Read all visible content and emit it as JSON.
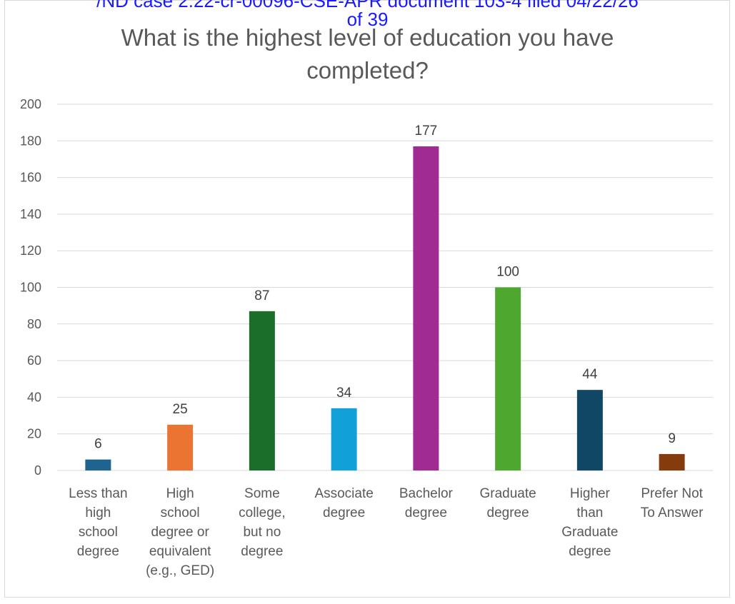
{
  "header_stamp": {
    "line1": "/ND case 2:22-cr-00096-CSE-APR    document 103-4    filed 04/22/26",
    "line2": "of 39"
  },
  "chart_data": {
    "type": "bar",
    "title": "What is the highest level of education you have completed?",
    "title_lines": [
      "What is the highest level of education you have",
      "completed?"
    ],
    "categories": [
      "Less than high school degree",
      "High school degree or equivalent (e.g., GED)",
      "Some college, but no degree",
      "Associate degree",
      "Bachelor degree",
      "Graduate degree",
      "Higher than Graduate degree",
      "Prefer Not To Answer"
    ],
    "category_lines": [
      [
        "Less than",
        "high",
        "school",
        "degree"
      ],
      [
        "High",
        "school",
        "degree or",
        "equivalent",
        "(e.g., GED)"
      ],
      [
        "Some",
        "college,",
        "but no",
        "degree"
      ],
      [
        "Associate",
        "degree"
      ],
      [
        "Bachelor",
        "degree"
      ],
      [
        "Graduate",
        "degree"
      ],
      [
        "Higher",
        "than",
        "Graduate",
        "degree"
      ],
      [
        "Prefer Not",
        "To Answer"
      ]
    ],
    "values": [
      6,
      25,
      87,
      34,
      177,
      100,
      44,
      9
    ],
    "colors": [
      "#1f6391",
      "#ec7433",
      "#1a6e2a",
      "#12a0d8",
      "#a02b93",
      "#4ea72e",
      "#0f4764",
      "#843c0c"
    ],
    "ylim": [
      0,
      200
    ],
    "yticks": [
      0,
      20,
      40,
      60,
      80,
      100,
      120,
      140,
      160,
      180,
      200
    ],
    "xlabel": "",
    "ylabel": "",
    "grid": true,
    "legend": "none"
  }
}
